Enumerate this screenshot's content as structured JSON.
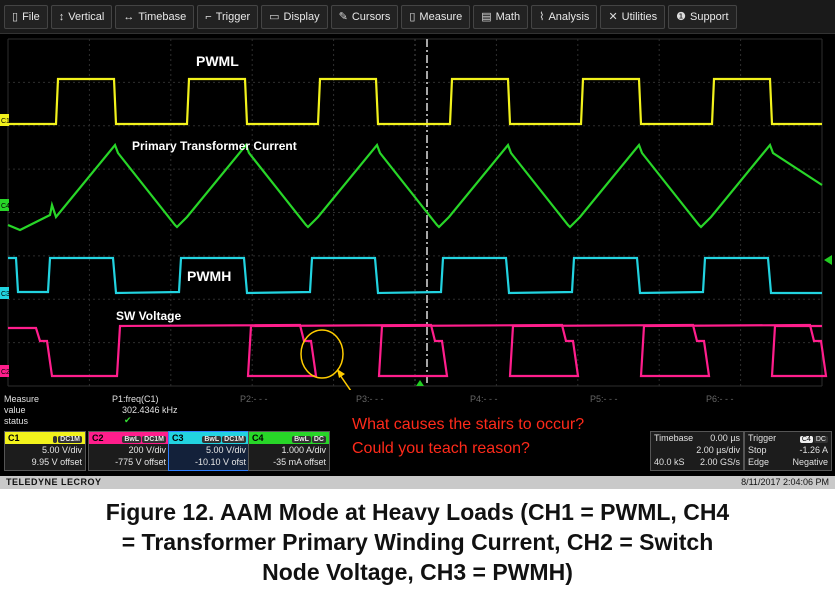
{
  "menu": {
    "items": [
      {
        "icon": "file-icon",
        "glyph": "▯",
        "label": "File"
      },
      {
        "icon": "vertical-icon",
        "glyph": "↕",
        "label": "Vertical"
      },
      {
        "icon": "timebase-icon",
        "glyph": "↔",
        "label": "Timebase"
      },
      {
        "icon": "trigger-icon",
        "glyph": "⌐",
        "label": "Trigger"
      },
      {
        "icon": "display-icon",
        "glyph": "▭",
        "label": "Display"
      },
      {
        "icon": "cursors-icon",
        "glyph": "✎",
        "label": "Cursors"
      },
      {
        "icon": "measure-icon",
        "glyph": "▯",
        "label": "Measure"
      },
      {
        "icon": "math-icon",
        "glyph": "▤",
        "label": "Math"
      },
      {
        "icon": "analysis-icon",
        "glyph": "⌇",
        "label": "Analysis"
      },
      {
        "icon": "utilities-icon",
        "glyph": "✕",
        "label": "Utilities"
      },
      {
        "icon": "support-icon",
        "glyph": "❶",
        "label": "Support"
      }
    ]
  },
  "traces": {
    "pwml_label": "PWML",
    "current_label": "Primary Transformer Current",
    "pwmh_label": "PWMH",
    "sw_label": "SW Voltage",
    "c1": "C1",
    "c4": "C4",
    "c3": "C3",
    "c2": "C2",
    "colors": {
      "c1": "#f2f21c",
      "c4": "#28d628",
      "c3": "#22d3e0",
      "c2": "#ff1e8c",
      "marker": "#ffcc00",
      "trigger": "#22cc22"
    }
  },
  "measure": {
    "row1": {
      "label": "Measure",
      "p1": "P1:freq(C1)",
      "p2": "P2:- - -",
      "p3": "P3:- - -",
      "p4": "P4:- - -",
      "p5": "P5:- - -",
      "p6": "P6:- - -"
    },
    "row2": {
      "label": "value",
      "value": "302.4346 kHz"
    },
    "row3": {
      "label": "status",
      "status": "✔"
    }
  },
  "channels": [
    {
      "name": "C1",
      "tag1": "",
      "tag2": "DC1M",
      "vdiv": "5.00 V/div",
      "offset": "9.95 V offset",
      "color": "#f2f21c"
    },
    {
      "name": "C2",
      "tag1": "BwL",
      "tag2": "DC1M",
      "vdiv": "200 V/div",
      "offset": "-775 V offset",
      "color": "#ff1e8c"
    },
    {
      "name": "C3",
      "tag1": "BwL",
      "tag2": "DC1M",
      "vdiv": "5.00 V/div",
      "offset": "-10.10 V ofst",
      "color": "#22d3e0"
    },
    {
      "name": "C4",
      "tag1": "BwL",
      "tag2": "DC",
      "vdiv": "1.000 A/div",
      "offset": "-35 mA offset",
      "color": "#28d628"
    }
  ],
  "timebase": {
    "label": "Timebase",
    "delay": "0.00 µs",
    "tdiv": "2.00 µs/div",
    "samples": "40.0 kS",
    "rate": "2.00 GS/s"
  },
  "trigger": {
    "label": "Trigger",
    "ch": "C4",
    "coupling": "DC",
    "mode": "Stop",
    "level": "-1.26 A",
    "type": "Edge",
    "slope": "Negative"
  },
  "footer": {
    "brand": "TELEDYNE LECROY",
    "datetime": "8/11/2017 2:04:06 PM"
  },
  "question": {
    "line1": "What causes the stairs to occur?",
    "line2": "Could you teach reason?"
  },
  "caption": {
    "line1": "Figure 12. AAM Mode at Heavy Loads (CH1 = PWML, CH4",
    "line2": "= Transformer Primary Winding Current, CH2 = Switch",
    "line3": "Node Voltage, CH3 = PWMH)"
  }
}
